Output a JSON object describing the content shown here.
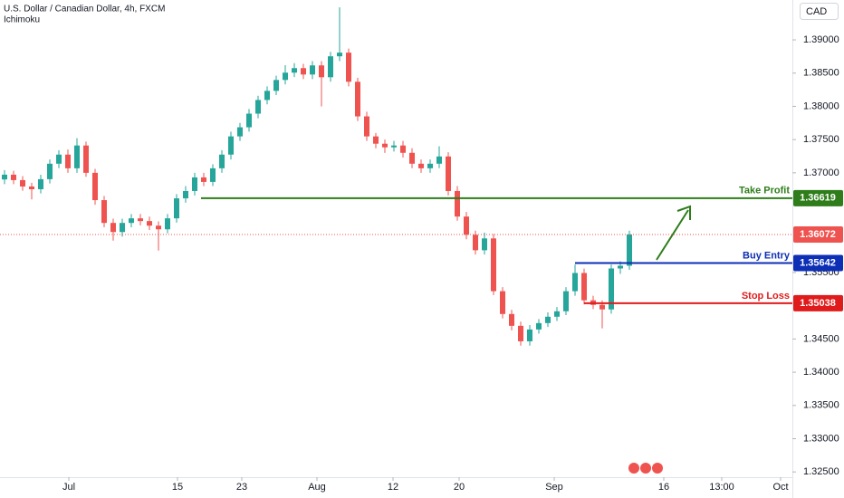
{
  "chart_data": {
    "type": "candlestick",
    "title": "U.S. Dollar / Canadian Dollar, 4h, FXCM",
    "indicator": "Ichimoku",
    "currency": "CAD",
    "up_color": "#26a69a",
    "down_color": "#ef5350",
    "grid": false,
    "open": [
      1.369,
      1.36972,
      1.3689,
      1.36794,
      1.36753,
      1.36904,
      1.37137,
      1.37274,
      1.37068,
      1.37411,
      1.37,
      1.36589,
      1.36246,
      1.36109,
      1.36246,
      1.36315,
      1.36274,
      1.36205,
      1.3615,
      1.36315,
      1.36616,
      1.36726,
      1.36931,
      1.36863,
      1.37068,
      1.37274,
      1.37548,
      1.37685,
      1.3789,
      1.38096,
      1.38233,
      1.38397,
      1.38507,
      1.38575,
      1.38479,
      1.38616,
      1.38438,
      1.38753,
      1.38808,
      1.3837,
      1.37849,
      1.37548,
      1.37438,
      1.37383,
      1.37411,
      1.37301,
      1.37137,
      1.37068,
      1.37137,
      1.37246,
      1.36726,
      1.36342,
      1.36068,
      1.35835,
      1.36013,
      1.35219,
      1.34876,
      1.34698,
      1.34465,
      1.34643,
      1.34739,
      1.34835,
      1.34917,
      1.35219,
      1.35493,
      1.35082,
      1.35013,
      1.34945,
      1.35561,
      1.35602
    ],
    "high": [
      1.3704,
      1.3703,
      1.3695,
      1.3685,
      1.3697,
      1.372,
      1.3734,
      1.3735,
      1.3752,
      1.3747,
      1.3706,
      1.3665,
      1.3631,
      1.3631,
      1.3638,
      1.3638,
      1.3634,
      1.3627,
      1.3638,
      1.3668,
      1.368,
      1.37,
      1.37,
      1.3713,
      1.3734,
      1.3762,
      1.3775,
      1.3796,
      1.3816,
      1.383,
      1.3846,
      1.3862,
      1.3865,
      1.3864,
      1.3868,
      1.3868,
      1.3882,
      1.3949,
      1.3887,
      1.3843,
      1.3792,
      1.376,
      1.375,
      1.3748,
      1.3748,
      1.3737,
      1.372,
      1.372,
      1.374,
      1.3731,
      1.368,
      1.3641,
      1.3613,
      1.361,
      1.3608,
      1.3528,
      1.3494,
      1.3476,
      1.3471,
      1.348,
      1.349,
      1.3498,
      1.3528,
      1.3562,
      1.3556,
      1.3515,
      1.3508,
      1.3562,
      1.3567,
      1.3613
    ],
    "low": [
      1.3683,
      1.3683,
      1.3673,
      1.366,
      1.3669,
      1.3684,
      1.3707,
      1.37,
      1.37,
      1.3694,
      1.3652,
      1.3618,
      1.3598,
      1.3604,
      1.3618,
      1.3621,
      1.3614,
      1.3583,
      1.3609,
      1.3625,
      1.3655,
      1.3666,
      1.368,
      1.368,
      1.37,
      1.372,
      1.3748,
      1.3762,
      1.3782,
      1.3803,
      1.3817,
      1.3833,
      1.3844,
      1.3841,
      1.3841,
      1.38,
      1.3837,
      1.3868,
      1.383,
      1.3778,
      1.3748,
      1.3737,
      1.373,
      1.3732,
      1.3723,
      1.3707,
      1.37,
      1.37,
      1.3707,
      1.3666,
      1.3628,
      1.36,
      1.3577,
      1.3577,
      1.3516,
      1.3481,
      1.3463,
      1.344,
      1.344,
      1.3458,
      1.3468,
      1.3477,
      1.3486,
      1.3515,
      1.3502,
      1.3495,
      1.3466,
      1.3488,
      1.3548,
      1.3554
    ],
    "close": [
      1.36972,
      1.3689,
      1.36794,
      1.36753,
      1.36904,
      1.37137,
      1.37274,
      1.37068,
      1.37411,
      1.37,
      1.36589,
      1.36246,
      1.36109,
      1.36246,
      1.36315,
      1.36274,
      1.36205,
      1.3615,
      1.36315,
      1.36616,
      1.36726,
      1.36931,
      1.36863,
      1.37068,
      1.37274,
      1.37548,
      1.37685,
      1.3789,
      1.38096,
      1.38233,
      1.38397,
      1.38507,
      1.38575,
      1.38479,
      1.38616,
      1.38438,
      1.38753,
      1.38808,
      1.3837,
      1.37849,
      1.37548,
      1.37438,
      1.37383,
      1.37411,
      1.37301,
      1.37137,
      1.37068,
      1.37137,
      1.37246,
      1.36726,
      1.36342,
      1.36068,
      1.35835,
      1.36013,
      1.35219,
      1.34876,
      1.34698,
      1.34465,
      1.34643,
      1.34739,
      1.34835,
      1.34917,
      1.35219,
      1.35493,
      1.35082,
      1.35013,
      1.34945,
      1.35561,
      1.35602,
      1.36072
    ],
    "levels": [
      {
        "name": "Take Profit",
        "value": 1.36619,
        "color": "#2e7d1a",
        "start": 21.7
      },
      {
        "name": "Buy Entry",
        "value": 1.35642,
        "color": "#0d2fb5",
        "start": 63
      },
      {
        "name": "Stop Loss",
        "value": 1.35038,
        "color": "#e01b1b",
        "start": 64
      }
    ],
    "ylim": [
      1.3238,
      1.396
    ],
    "yticks": [
      {
        "value": 1.325,
        "label": "1.32500"
      },
      {
        "value": 1.33,
        "label": "1.33000"
      },
      {
        "value": 1.335,
        "label": "1.33500"
      },
      {
        "value": 1.34,
        "label": "1.34000"
      },
      {
        "value": 1.345,
        "label": "1.34500"
      },
      {
        "value": 1.355,
        "label": "1.35500"
      },
      {
        "value": 1.37,
        "label": "1.37000"
      },
      {
        "value": 1.375,
        "label": "1.37500"
      },
      {
        "value": 1.38,
        "label": "1.38000"
      },
      {
        "value": 1.385,
        "label": "1.38500"
      },
      {
        "value": 1.39,
        "label": "1.39000"
      }
    ],
    "xlim": [
      -0.5,
      87.0
    ],
    "xticks": [
      {
        "value": 7.1,
        "label": "Jul"
      },
      {
        "value": 19.1,
        "label": "15"
      },
      {
        "value": 26.2,
        "label": "23"
      },
      {
        "value": 34.5,
        "label": "Aug"
      },
      {
        "value": 42.9,
        "label": "12"
      },
      {
        "value": 50.2,
        "label": "20"
      },
      {
        "value": 60.7,
        "label": "Sep"
      },
      {
        "value": 72.8,
        "label": "16"
      },
      {
        "value": 79.2,
        "label": "13:00"
      },
      {
        "value": 85.7,
        "label": "Oct"
      }
    ]
  }
}
